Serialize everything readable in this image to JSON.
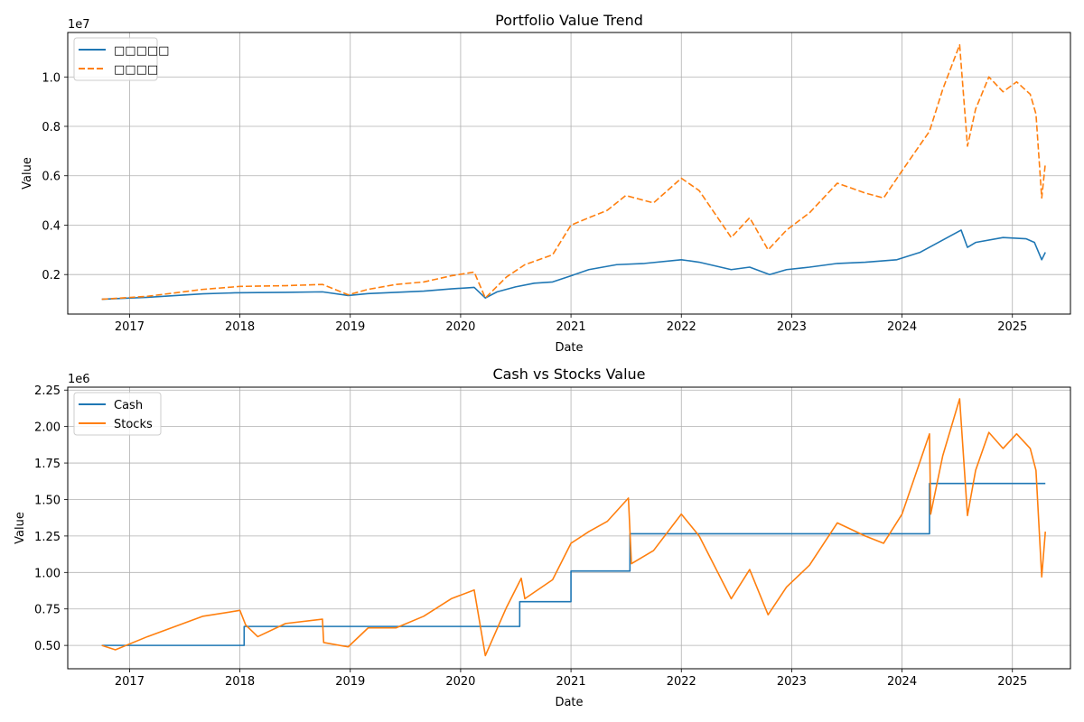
{
  "chart_data": [
    {
      "type": "line",
      "title": "Portfolio Value Trend",
      "xlabel": "Date",
      "ylabel": "Value",
      "y_offset_label": "1e7",
      "xlim": [
        "2016-06-10",
        "2025-07-12"
      ],
      "ylim": [
        400000,
        11800000
      ],
      "grid": true,
      "legend_position": "top-left",
      "x_ticks": [
        "2017",
        "2018",
        "2019",
        "2020",
        "2021",
        "2022",
        "2023",
        "2024",
        "2025"
      ],
      "y_ticks": [
        "0.2",
        "0.4",
        "0.6",
        "0.8",
        "1.0"
      ],
      "y_tick_values": [
        2000000,
        4000000,
        6000000,
        8000000,
        10000000
      ],
      "series": [
        {
          "name": "□□□□□",
          "color": "#1f77b4",
          "style": "solid",
          "points": [
            [
              "2016-10-01",
              1000000
            ],
            [
              "2017-03-01",
              1080000
            ],
            [
              "2017-09-01",
              1220000
            ],
            [
              "2017-12-15",
              1260000
            ],
            [
              "2018-03-01",
              1270000
            ],
            [
              "2018-06-01",
              1280000
            ],
            [
              "2018-10-01",
              1300000
            ],
            [
              "2018-12-25",
              1150000
            ],
            [
              "2019-03-01",
              1230000
            ],
            [
              "2019-06-01",
              1280000
            ],
            [
              "2019-09-01",
              1330000
            ],
            [
              "2019-12-01",
              1420000
            ],
            [
              "2020-02-15",
              1480000
            ],
            [
              "2020-03-23",
              1050000
            ],
            [
              "2020-05-01",
              1300000
            ],
            [
              "2020-07-01",
              1500000
            ],
            [
              "2020-09-01",
              1650000
            ],
            [
              "2020-11-01",
              1700000
            ],
            [
              "2021-01-01",
              1950000
            ],
            [
              "2021-03-01",
              2200000
            ],
            [
              "2021-06-01",
              2400000
            ],
            [
              "2021-09-01",
              2450000
            ],
            [
              "2022-01-01",
              2600000
            ],
            [
              "2022-03-01",
              2500000
            ],
            [
              "2022-06-15",
              2200000
            ],
            [
              "2022-08-15",
              2300000
            ],
            [
              "2022-10-20",
              2000000
            ],
            [
              "2022-12-15",
              2200000
            ],
            [
              "2023-03-01",
              2300000
            ],
            [
              "2023-06-01",
              2450000
            ],
            [
              "2023-09-01",
              2500000
            ],
            [
              "2023-12-15",
              2600000
            ],
            [
              "2024-03-01",
              2900000
            ],
            [
              "2024-07-15",
              3800000
            ],
            [
              "2024-08-05",
              3100000
            ],
            [
              "2024-09-01",
              3300000
            ],
            [
              "2024-12-01",
              3500000
            ],
            [
              "2025-02-15",
              3450000
            ],
            [
              "2025-03-15",
              3300000
            ],
            [
              "2025-04-08",
              2600000
            ],
            [
              "2025-04-20",
              2900000
            ]
          ]
        },
        {
          "name": "□□□□",
          "color": "#ff7f0e",
          "style": "dashed",
          "points": [
            [
              "2016-10-01",
              1000000
            ],
            [
              "2017-03-01",
              1120000
            ],
            [
              "2017-09-01",
              1400000
            ],
            [
              "2018-01-01",
              1520000
            ],
            [
              "2018-06-01",
              1550000
            ],
            [
              "2018-10-01",
              1600000
            ],
            [
              "2018-12-25",
              1180000
            ],
            [
              "2019-03-01",
              1400000
            ],
            [
              "2019-06-01",
              1600000
            ],
            [
              "2019-09-01",
              1700000
            ],
            [
              "2019-12-01",
              1950000
            ],
            [
              "2020-02-15",
              2100000
            ],
            [
              "2020-03-23",
              1050000
            ],
            [
              "2020-06-01",
              1900000
            ],
            [
              "2020-08-01",
              2400000
            ],
            [
              "2020-11-01",
              2800000
            ],
            [
              "2021-01-01",
              4000000
            ],
            [
              "2021-03-01",
              4300000
            ],
            [
              "2021-05-01",
              4600000
            ],
            [
              "2021-07-01",
              5200000
            ],
            [
              "2021-10-01",
              4900000
            ],
            [
              "2022-01-01",
              5900000
            ],
            [
              "2022-03-01",
              5400000
            ],
            [
              "2022-06-15",
              3500000
            ],
            [
              "2022-08-15",
              4300000
            ],
            [
              "2022-10-15",
              3000000
            ],
            [
              "2022-12-15",
              3800000
            ],
            [
              "2023-03-01",
              4500000
            ],
            [
              "2023-06-01",
              5700000
            ],
            [
              "2023-09-01",
              5300000
            ],
            [
              "2023-11-01",
              5100000
            ],
            [
              "2024-01-01",
              6200000
            ],
            [
              "2024-04-01",
              7800000
            ],
            [
              "2024-05-15",
              9500000
            ],
            [
              "2024-07-10",
              11300000
            ],
            [
              "2024-08-05",
              7200000
            ],
            [
              "2024-09-01",
              8700000
            ],
            [
              "2024-10-15",
              10000000
            ],
            [
              "2024-12-01",
              9400000
            ],
            [
              "2025-01-15",
              9800000
            ],
            [
              "2025-03-01",
              9300000
            ],
            [
              "2025-03-20",
              8500000
            ],
            [
              "2025-04-08",
              5100000
            ],
            [
              "2025-04-20",
              6500000
            ]
          ]
        }
      ]
    },
    {
      "type": "line",
      "title": "Cash vs Stocks Value",
      "xlabel": "Date",
      "ylabel": "Value",
      "y_offset_label": "1e6",
      "xlim": [
        "2016-06-10",
        "2025-07-12"
      ],
      "ylim": [
        340000,
        2270000
      ],
      "grid": true,
      "legend_position": "top-left",
      "x_ticks": [
        "2017",
        "2018",
        "2019",
        "2020",
        "2021",
        "2022",
        "2023",
        "2024",
        "2025"
      ],
      "y_ticks": [
        "0.50",
        "0.75",
        "1.00",
        "1.25",
        "1.50",
        "1.75",
        "2.00",
        "2.25"
      ],
      "y_tick_values": [
        500000,
        750000,
        1000000,
        1250000,
        1500000,
        1750000,
        2000000,
        2250000
      ],
      "series": [
        {
          "name": "Cash",
          "color": "#1f77b4",
          "style": "step",
          "points": [
            [
              "2016-10-01",
              500000
            ],
            [
              "2018-01-15",
              500000
            ],
            [
              "2018-01-15",
              630000
            ],
            [
              "2020-07-15",
              630000
            ],
            [
              "2020-07-15",
              800000
            ],
            [
              "2021-01-01",
              800000
            ],
            [
              "2021-01-01",
              1010000
            ],
            [
              "2021-07-15",
              1010000
            ],
            [
              "2021-07-15",
              1265000
            ],
            [
              "2024-04-01",
              1265000
            ],
            [
              "2024-04-01",
              1610000
            ],
            [
              "2025-04-20",
              1610000
            ]
          ]
        },
        {
          "name": "Stocks",
          "color": "#ff7f0e",
          "style": "solid",
          "points": [
            [
              "2016-10-01",
              500000
            ],
            [
              "2016-11-15",
              470000
            ],
            [
              "2017-03-01",
              560000
            ],
            [
              "2017-09-01",
              700000
            ],
            [
              "2018-01-01",
              740000
            ],
            [
              "2018-01-20",
              640000
            ],
            [
              "2018-03-01",
              560000
            ],
            [
              "2018-06-01",
              650000
            ],
            [
              "2018-10-01",
              680000
            ],
            [
              "2018-10-05",
              520000
            ],
            [
              "2018-12-25",
              490000
            ],
            [
              "2019-03-01",
              620000
            ],
            [
              "2019-06-01",
              620000
            ],
            [
              "2019-09-01",
              700000
            ],
            [
              "2019-12-01",
              820000
            ],
            [
              "2020-02-15",
              880000
            ],
            [
              "2020-03-23",
              430000
            ],
            [
              "2020-06-01",
              760000
            ],
            [
              "2020-07-20",
              960000
            ],
            [
              "2020-08-01",
              820000
            ],
            [
              "2020-11-01",
              950000
            ],
            [
              "2021-01-01",
              1200000
            ],
            [
              "2021-03-01",
              1280000
            ],
            [
              "2021-05-01",
              1350000
            ],
            [
              "2021-07-10",
              1510000
            ],
            [
              "2021-07-20",
              1060000
            ],
            [
              "2021-10-01",
              1150000
            ],
            [
              "2022-01-01",
              1400000
            ],
            [
              "2022-03-01",
              1250000
            ],
            [
              "2022-06-15",
              820000
            ],
            [
              "2022-08-15",
              1020000
            ],
            [
              "2022-10-15",
              710000
            ],
            [
              "2022-12-15",
              900000
            ],
            [
              "2023-03-01",
              1050000
            ],
            [
              "2023-06-01",
              1340000
            ],
            [
              "2023-09-01",
              1250000
            ],
            [
              "2023-11-01",
              1200000
            ],
            [
              "2024-01-01",
              1400000
            ],
            [
              "2024-04-01",
              1950000
            ],
            [
              "2024-04-05",
              1400000
            ],
            [
              "2024-05-15",
              1800000
            ],
            [
              "2024-07-10",
              2190000
            ],
            [
              "2024-08-05",
              1390000
            ],
            [
              "2024-09-01",
              1700000
            ],
            [
              "2024-10-15",
              1960000
            ],
            [
              "2024-12-01",
              1850000
            ],
            [
              "2025-01-15",
              1950000
            ],
            [
              "2025-03-01",
              1850000
            ],
            [
              "2025-03-20",
              1700000
            ],
            [
              "2025-04-08",
              970000
            ],
            [
              "2025-04-20",
              1280000
            ]
          ]
        }
      ]
    }
  ]
}
